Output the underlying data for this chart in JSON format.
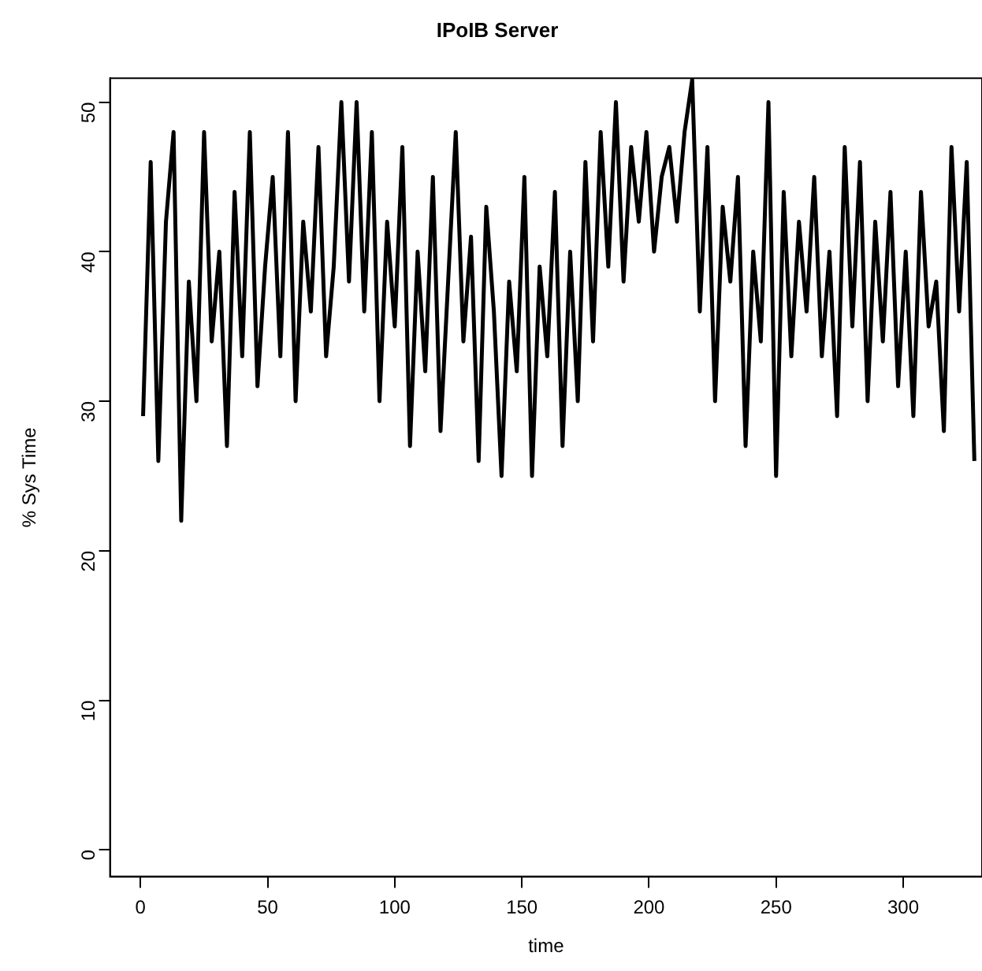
{
  "chart_data": {
    "type": "line",
    "title": "IPoIB Server",
    "xlabel": "time",
    "ylabel": "% Sys Time",
    "x": [
      1,
      4,
      7,
      10,
      13,
      16,
      19,
      22,
      25,
      28,
      31,
      34,
      37,
      40,
      43,
      46,
      49,
      52,
      55,
      58,
      61,
      64,
      67,
      70,
      73,
      76,
      79,
      82,
      85,
      88,
      91,
      94,
      97,
      100,
      103,
      106,
      109,
      112,
      115,
      118,
      121,
      124,
      127,
      130,
      133,
      136,
      139,
      142,
      145,
      148,
      151,
      154,
      157,
      160,
      163,
      166,
      169,
      172,
      175,
      178,
      181,
      184,
      187,
      190,
      193,
      196,
      199,
      202,
      205,
      208,
      211,
      214,
      217,
      220,
      223,
      226,
      229,
      232,
      235,
      238,
      241,
      244,
      247,
      250,
      253,
      256,
      259,
      262,
      265,
      268,
      271,
      274,
      277,
      280,
      283,
      286,
      289,
      292,
      295,
      298,
      301,
      304,
      307,
      310,
      313,
      316,
      319,
      322,
      325,
      328
    ],
    "series": [
      {
        "color": "#000000",
        "values": [
          29,
          46,
          26,
          42,
          48,
          22,
          38,
          30,
          48,
          34,
          40,
          27,
          44,
          33,
          48,
          31,
          39,
          45,
          33,
          48,
          30,
          42,
          36,
          47,
          33,
          39,
          50,
          38,
          50,
          36,
          48,
          30,
          42,
          35,
          47,
          27,
          40,
          32,
          45,
          28,
          38,
          48,
          34,
          41,
          26,
          43,
          36,
          25,
          38,
          32,
          45,
          25,
          39,
          33,
          44,
          27,
          40,
          30,
          46,
          34,
          48,
          39,
          50,
          38,
          47,
          42,
          48,
          40,
          45,
          47,
          42,
          48,
          51.5,
          36,
          47,
          30,
          43,
          38,
          45,
          27,
          40,
          34,
          50,
          25,
          44,
          33,
          42,
          36,
          45,
          33,
          40,
          29,
          47,
          35,
          46,
          30,
          42,
          34,
          44,
          31,
          40,
          29,
          44,
          35,
          38,
          28,
          47,
          36,
          46,
          26
        ]
      }
    ],
    "xlim": [
      -12,
      331
    ],
    "ylim": [
      -1.8,
      51.6
    ],
    "xticks": [
      0,
      50,
      100,
      150,
      200,
      250,
      300
    ],
    "yticks": [
      0,
      10,
      20,
      30,
      40,
      50
    ],
    "grid": false,
    "legend": false,
    "marker": "none",
    "line_style": "solid"
  }
}
